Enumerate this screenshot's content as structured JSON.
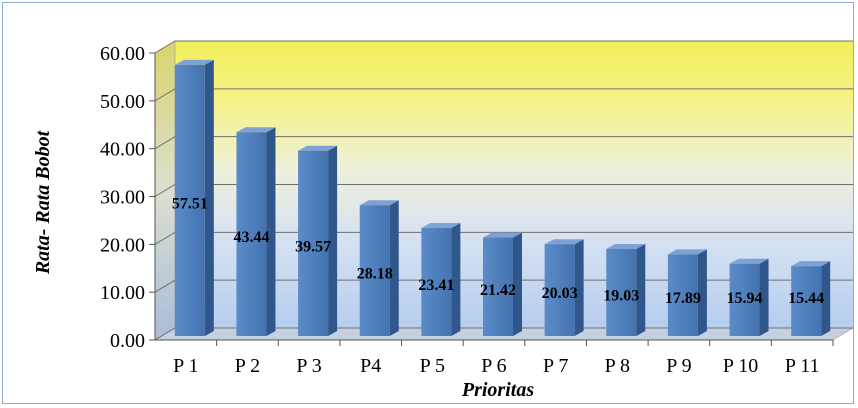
{
  "chart_data": {
    "type": "bar",
    "title": "",
    "xlabel": "Prioritas",
    "ylabel": "Rata- Rata Bobot",
    "categories": [
      "P 1",
      "P 2",
      "P 3",
      "P4",
      "P 5",
      "P 6",
      "P 7",
      "P 8",
      "P 9",
      "P 10",
      "P 11"
    ],
    "values": [
      57.51,
      43.44,
      39.57,
      28.18,
      23.41,
      21.42,
      20.03,
      19.03,
      17.89,
      15.94,
      15.44
    ],
    "value_labels": [
      "57.51",
      "43.44",
      "39.57",
      "28.18",
      "23.41",
      "21.42",
      "20.03",
      "19.03",
      "17.89",
      "15.94",
      "15.44"
    ],
    "yticks": [
      "0.00",
      "10.00",
      "20.00",
      "30.00",
      "40.00",
      "50.00",
      "60.00"
    ],
    "ylim": [
      0,
      60
    ],
    "grid": true,
    "legend": "none",
    "colors": {
      "bar_front": "#4f81bd",
      "bar_side": "#30578b",
      "bar_top": "#7ea2d4",
      "wall_top": "#f2ee5a",
      "wall_bottom": "#b6cdee",
      "floor": "#c4cfe0",
      "gridline": "#6f6f6f",
      "frame": "#8faad6"
    }
  }
}
